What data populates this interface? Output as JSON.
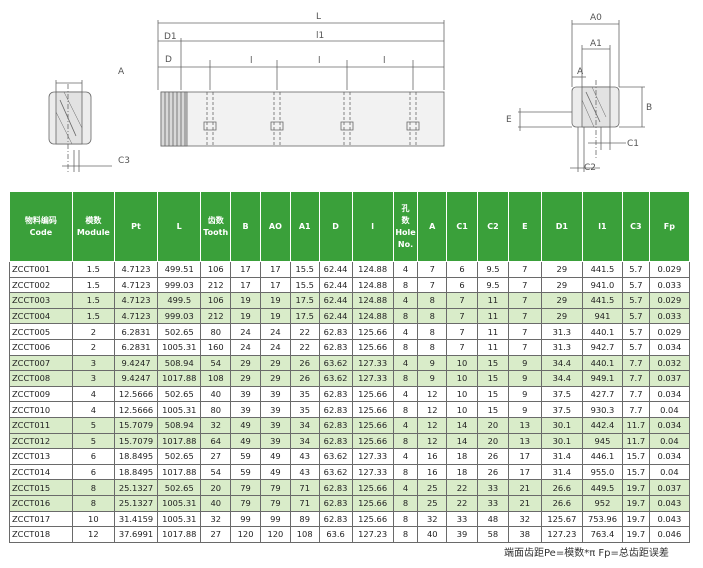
{
  "drawing": {
    "labels": {
      "L": "L",
      "D1": "D1",
      "l1": "l1",
      "D": "D",
      "l": "l",
      "A": "A",
      "C3": "C3",
      "A0": "A0",
      "A1": "A1",
      "B": "B",
      "E": "E",
      "C1": "C1",
      "C2": "C2"
    }
  },
  "table": {
    "headers": [
      "物料编码\nCode",
      "模数\nModule",
      "Pt",
      "L",
      "齿数\nTooth",
      "B",
      "AO",
      "A1",
      "D",
      "l",
      "孔\n数\nHole\nNo.",
      "A",
      "C1",
      "C2",
      "E",
      "D1",
      "l1",
      "C3",
      "Fp"
    ],
    "rows": [
      [
        "ZCCT001",
        "1.5",
        "4.7123",
        "499.51",
        "106",
        "17",
        "17",
        "15.5",
        "62.44",
        "124.88",
        "4",
        "7",
        "6",
        "9.5",
        "7",
        "29",
        "441.5",
        "5.7",
        "0.029"
      ],
      [
        "ZCCT002",
        "1.5",
        "4.7123",
        "999.03",
        "212",
        "17",
        "17",
        "15.5",
        "62.44",
        "124.88",
        "8",
        "7",
        "6",
        "9.5",
        "7",
        "29",
        "941.0",
        "5.7",
        "0.033"
      ],
      [
        "ZCCT003",
        "1.5",
        "4.7123",
        "499.5",
        "106",
        "19",
        "19",
        "17.5",
        "62.44",
        "124.88",
        "4",
        "8",
        "7",
        "11",
        "7",
        "29",
        "441.5",
        "5.7",
        "0.029"
      ],
      [
        "ZCCT004",
        "1.5",
        "4.7123",
        "999.03",
        "212",
        "19",
        "19",
        "17.5",
        "62.44",
        "124.88",
        "8",
        "8",
        "7",
        "11",
        "7",
        "29",
        "941",
        "5.7",
        "0.033"
      ],
      [
        "ZCCT005",
        "2",
        "6.2831",
        "502.65",
        "80",
        "24",
        "24",
        "22",
        "62.83",
        "125.66",
        "4",
        "8",
        "7",
        "11",
        "7",
        "31.3",
        "440.1",
        "5.7",
        "0.029"
      ],
      [
        "ZCCT006",
        "2",
        "6.2831",
        "1005.31",
        "160",
        "24",
        "24",
        "22",
        "62.83",
        "125.66",
        "8",
        "8",
        "7",
        "11",
        "7",
        "31.3",
        "942.7",
        "5.7",
        "0.034"
      ],
      [
        "ZCCT007",
        "3",
        "9.4247",
        "508.94",
        "54",
        "29",
        "29",
        "26",
        "63.62",
        "127.33",
        "4",
        "9",
        "10",
        "15",
        "9",
        "34.4",
        "440.1",
        "7.7",
        "0.032"
      ],
      [
        "ZCCT008",
        "3",
        "9.4247",
        "1017.88",
        "108",
        "29",
        "29",
        "26",
        "63.62",
        "127.33",
        "8",
        "9",
        "10",
        "15",
        "9",
        "34.4",
        "949.1",
        "7.7",
        "0.037"
      ],
      [
        "ZCCT009",
        "4",
        "12.5666",
        "502.65",
        "40",
        "39",
        "39",
        "35",
        "62.83",
        "125.66",
        "4",
        "12",
        "10",
        "15",
        "9",
        "37.5",
        "427.7",
        "7.7",
        "0.034"
      ],
      [
        "ZCCT010",
        "4",
        "12.5666",
        "1005.31",
        "80",
        "39",
        "39",
        "35",
        "62.83",
        "125.66",
        "8",
        "12",
        "10",
        "15",
        "9",
        "37.5",
        "930.3",
        "7.7",
        "0.04"
      ],
      [
        "ZCCT011",
        "5",
        "15.7079",
        "508.94",
        "32",
        "49",
        "39",
        "34",
        "62.83",
        "125.66",
        "4",
        "12",
        "14",
        "20",
        "13",
        "30.1",
        "442.4",
        "11.7",
        "0.034"
      ],
      [
        "ZCCT012",
        "5",
        "15.7079",
        "1017.88",
        "64",
        "49",
        "39",
        "34",
        "62.83",
        "125.66",
        "8",
        "12",
        "14",
        "20",
        "13",
        "30.1",
        "945",
        "11.7",
        "0.04"
      ],
      [
        "ZCCT013",
        "6",
        "18.8495",
        "502.65",
        "27",
        "59",
        "49",
        "43",
        "63.62",
        "127.33",
        "4",
        "16",
        "18",
        "26",
        "17",
        "31.4",
        "446.1",
        "15.7",
        "0.034"
      ],
      [
        "ZCCT014",
        "6",
        "18.8495",
        "1017.88",
        "54",
        "59",
        "49",
        "43",
        "63.62",
        "127.33",
        "8",
        "16",
        "18",
        "26",
        "17",
        "31.4",
        "955.0",
        "15.7",
        "0.04"
      ],
      [
        "ZCCT015",
        "8",
        "25.1327",
        "502.65",
        "20",
        "79",
        "79",
        "71",
        "62.83",
        "125.66",
        "4",
        "25",
        "22",
        "33",
        "21",
        "26.6",
        "449.5",
        "19.7",
        "0.037"
      ],
      [
        "ZCCT016",
        "8",
        "25.1327",
        "1005.31",
        "40",
        "79",
        "79",
        "71",
        "62.83",
        "125.66",
        "8",
        "25",
        "22",
        "33",
        "21",
        "26.6",
        "952",
        "19.7",
        "0.043"
      ],
      [
        "ZCCT017",
        "10",
        "31.4159",
        "1005.31",
        "32",
        "99",
        "99",
        "89",
        "62.83",
        "125.66",
        "8",
        "32",
        "33",
        "48",
        "32",
        "125.67",
        "753.96",
        "19.7",
        "0.043"
      ],
      [
        "ZCCT018",
        "12",
        "37.6991",
        "1017.88",
        "27",
        "120",
        "120",
        "108",
        "63.6",
        "127.23",
        "8",
        "40",
        "39",
        "58",
        "38",
        "127.23",
        "763.4",
        "19.7",
        "0.046"
      ]
    ],
    "highlighted_rows": [
      2,
      3,
      6,
      7,
      10,
      11,
      14,
      15
    ]
  },
  "footnote": "端面齿距Pe=模数*π  Fp=总齿距误差"
}
